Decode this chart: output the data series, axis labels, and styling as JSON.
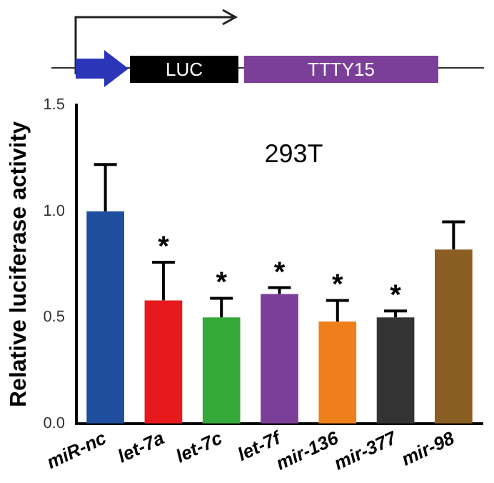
{
  "chart_data": {
    "type": "bar",
    "title": "293T",
    "ylabel": "Relative luciferase activity",
    "categories": [
      "miR-nc",
      "let-7a",
      "let-7c",
      "let-7f",
      "mir-136",
      "mir-377",
      "mir-98"
    ],
    "values": [
      1.0,
      0.58,
      0.5,
      0.61,
      0.48,
      0.5,
      0.82
    ],
    "colors": [
      "#1f4e9e",
      "#e8191c",
      "#35a83a",
      "#7b3f99",
      "#ef7f1a",
      "#333333",
      "#8b5e24"
    ],
    "errors": [
      [
        1.0,
        1.22
      ],
      [
        0.58,
        0.76
      ],
      [
        0.5,
        0.59
      ],
      [
        0.61,
        0.64
      ],
      [
        0.48,
        0.58
      ],
      [
        0.5,
        0.53
      ],
      [
        0.82,
        0.95
      ]
    ],
    "ylim": [
      0,
      1.5
    ],
    "yticks": [
      {
        "value": 0,
        "label": "0.0"
      },
      {
        "value": 0.5,
        "label": "0.5"
      },
      {
        "value": 1,
        "label": "1.0"
      },
      {
        "value": 1.5,
        "label": "1.5"
      }
    ],
    "grid": false,
    "legend": false,
    "annotations": [
      "LUC",
      "TTTY15",
      {
        "text": "*",
        "x": "let-7a",
        "y": 0.58
      },
      {
        "text": "*",
        "x": "let-7c",
        "y": 0.5
      },
      {
        "text": "*",
        "x": "let-7f",
        "y": 0.61
      },
      {
        "text": "*",
        "x": "mir-136",
        "y": 0.48
      },
      {
        "text": "*",
        "x": "mir-377",
        "y": 0.5
      }
    ]
  }
}
